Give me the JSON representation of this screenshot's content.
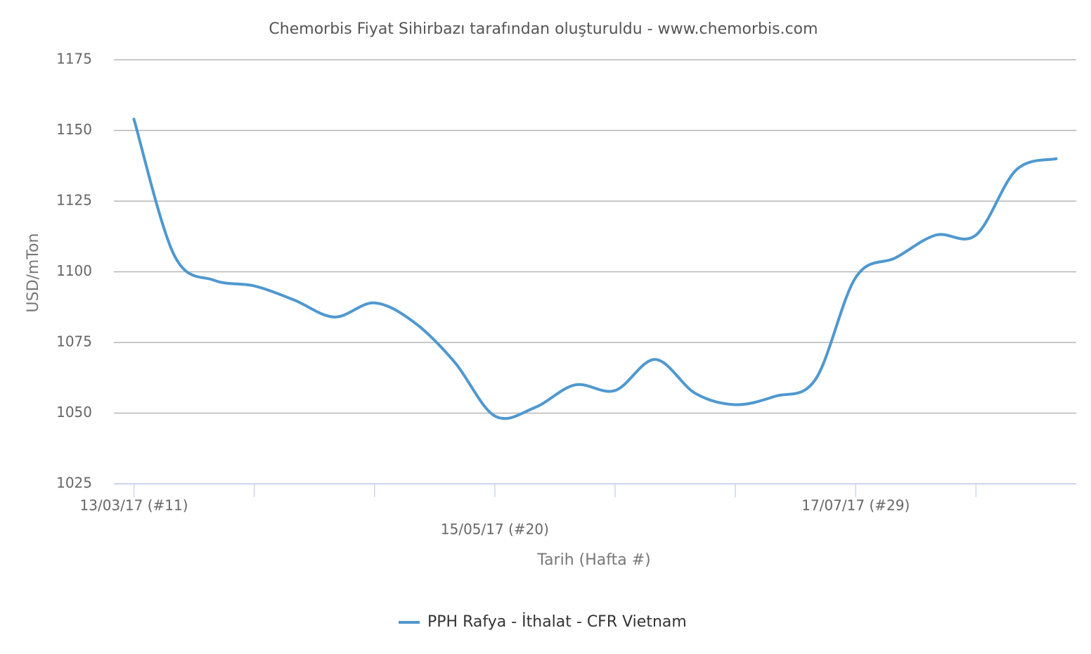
{
  "chart_data": {
    "type": "line",
    "title": "Chemorbis Fiyat Sihirbazı tarafından oluşturuldu - www.chemorbis.com",
    "x_label": "Tarih (Hafta #)",
    "y_label": "USD/mTon",
    "categories": [
      "13/03/17 (#11)",
      null,
      null,
      null,
      null,
      null,
      null,
      null,
      null,
      "15/05/17 (#20)",
      null,
      null,
      null,
      null,
      null,
      null,
      null,
      null,
      "17/07/17 (#29)",
      null,
      null,
      null,
      null,
      null
    ],
    "series": [
      {
        "name": "PPH Rafya - İthalat - CFR Vietnam",
        "color": "#4f98cf",
        "values": [
          1154,
          1106,
          1097,
          1095,
          1090,
          1084,
          1089,
          1082,
          1068,
          1049,
          1052,
          1060,
          1058,
          1069,
          1057,
          1053,
          1056,
          1062,
          1098,
          1105,
          1113,
          1113,
          1136,
          1140
        ]
      }
    ],
    "ylim": [
      1025,
      1175
    ],
    "yticks": [
      1025,
      1050,
      1075,
      1100,
      1125,
      1150,
      1175
    ],
    "grid": true,
    "legend": "bottom"
  }
}
